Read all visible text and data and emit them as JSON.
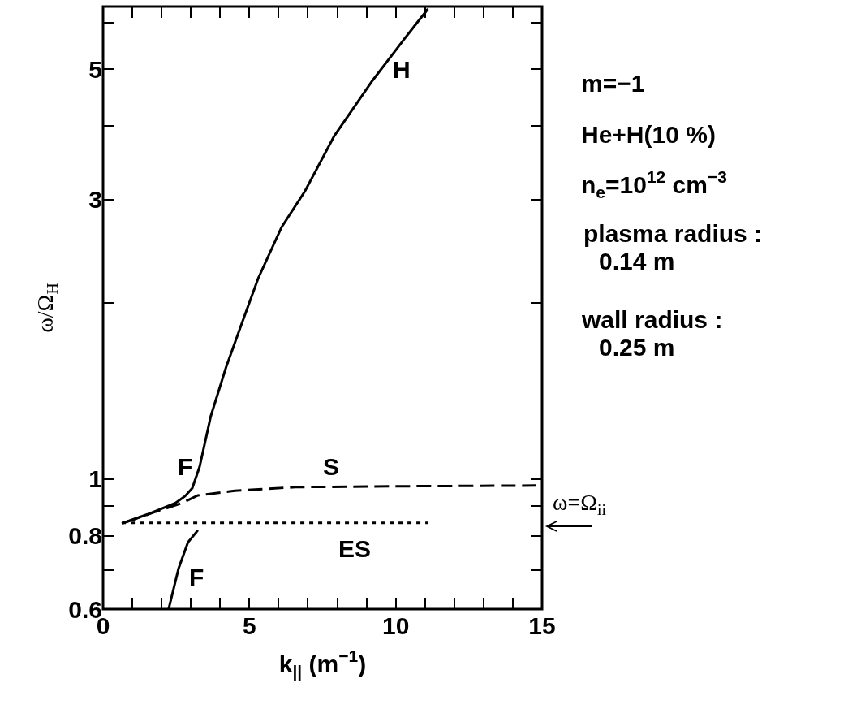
{
  "chart_data": {
    "type": "line",
    "xlabel": "k$_{||}$ (m$^{−1}$)",
    "ylabel": "ω/Ω$_{H}$",
    "log": "y",
    "xlim": [
      0,
      15
    ],
    "ylim": [
      0.6,
      6.4
    ],
    "xticks": [
      0,
      {
        "value": 1,
        "label": null
      },
      {
        "value": 2,
        "label": null
      },
      {
        "value": 3,
        "label": null
      },
      {
        "value": 4,
        "label": null
      },
      5,
      {
        "value": 6,
        "label": null
      },
      {
        "value": 7,
        "label": null
      },
      {
        "value": 8,
        "label": null
      },
      {
        "value": 9,
        "label": null
      },
      10,
      {
        "value": 11,
        "label": null
      },
      {
        "value": 12,
        "label": null
      },
      {
        "value": 13,
        "label": null
      },
      {
        "value": 14,
        "label": null
      },
      15
    ],
    "yticks": [
      0.6,
      {
        "value": 0.7,
        "label": null
      },
      0.8,
      {
        "value": 0.9,
        "label": null
      },
      1,
      {
        "value": 2,
        "label": null
      },
      3,
      {
        "value": 4,
        "label": null
      },
      5,
      {
        "value": 6,
        "label": null
      }
    ],
    "series": [
      {
        "color": "#000000",
        "line_style": "solid",
        "x": [
          0.64,
          1.5,
          2.47,
          2.8,
          3.05,
          3.3,
          3.68,
          4.2,
          4.7,
          5.3,
          6.1,
          6.9,
          7.9,
          9.2,
          10.3,
          11.1
        ],
        "values": [
          0.84,
          0.87,
          0.91,
          0.935,
          0.965,
          1.05,
          1.28,
          1.55,
          1.82,
          2.2,
          2.69,
          3.1,
          3.85,
          4.78,
          5.64,
          6.34
        ]
      },
      {
        "color": "#000000",
        "line_style": "dashed",
        "x": [
          0.8,
          1.8,
          2.7,
          3.24,
          4.5,
          6.56,
          9.9,
          14.8
        ],
        "values": [
          0.845,
          0.88,
          0.91,
          0.938,
          0.955,
          0.969,
          0.972,
          0.975
        ]
      },
      {
        "color": "#000000",
        "line_style": "dotted",
        "x": [
          0.64,
          11.1
        ],
        "values": [
          0.842,
          0.842
        ]
      },
      {
        "color": "#000000",
        "line_style": "solid",
        "x": [
          2.24,
          2.58,
          2.9,
          3.24
        ],
        "values": [
          0.6,
          0.704,
          0.78,
          0.818
        ]
      }
    ],
    "annotations": [
      "H",
      "F",
      "S",
      "ES",
      "F",
      "ω=Ω$_{ii}$",
      "m=−1",
      "He+H(10 %)",
      "n$_{e}$=10$^{12}$ cm$^{−3}$",
      "plasma radius :",
      "0.14 m",
      "wall radius :",
      "0.25 m"
    ]
  }
}
